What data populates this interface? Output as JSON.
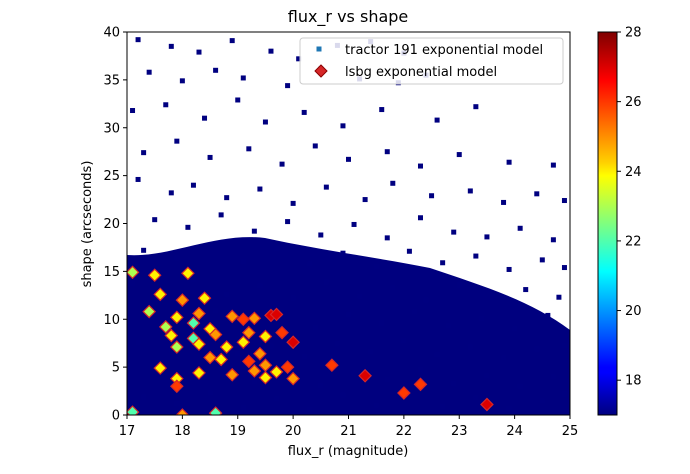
{
  "chart_data": {
    "type": "scatter",
    "title": "flux_r vs shape",
    "xlabel": "flux_r (magnitude)",
    "ylabel": "shape (arcseconds)",
    "xlim": [
      17,
      25
    ],
    "ylim": [
      0,
      40
    ],
    "xticks": [
      17,
      18,
      19,
      20,
      21,
      22,
      23,
      24,
      25
    ],
    "yticks": [
      0,
      5,
      10,
      15,
      20,
      25,
      30,
      35,
      40
    ],
    "grid": false,
    "legend_position": "upper right",
    "colorbar": {
      "colormap": "jet",
      "vmin": 17,
      "vmax": 28,
      "ticks": [
        18,
        20,
        22,
        24,
        26,
        28
      ]
    },
    "series": [
      {
        "name": "tractor 191 exponential model",
        "marker": "square",
        "legend_color": "#1f77b4",
        "dominant_color_value": 17,
        "points": [
          [
            17.2,
            39.2
          ],
          [
            17.8,
            38.5
          ],
          [
            18.3,
            37.9
          ],
          [
            18.9,
            39.1
          ],
          [
            19.6,
            38.0
          ],
          [
            20.1,
            37.2
          ],
          [
            20.8,
            38.6
          ],
          [
            21.4,
            39.0
          ],
          [
            22.0,
            37.8
          ],
          [
            17.4,
            35.8
          ],
          [
            18.0,
            34.9
          ],
          [
            18.6,
            36.0
          ],
          [
            19.1,
            35.2
          ],
          [
            19.9,
            34.4
          ],
          [
            20.5,
            36.2
          ],
          [
            21.2,
            35.1
          ],
          [
            21.9,
            34.7
          ],
          [
            22.4,
            35.5
          ],
          [
            17.1,
            31.8
          ],
          [
            17.7,
            32.4
          ],
          [
            18.4,
            31.0
          ],
          [
            19.0,
            32.9
          ],
          [
            19.5,
            30.6
          ],
          [
            20.2,
            31.6
          ],
          [
            20.9,
            30.2
          ],
          [
            21.6,
            31.9
          ],
          [
            22.6,
            30.8
          ],
          [
            23.3,
            32.2
          ],
          [
            17.3,
            27.4
          ],
          [
            17.9,
            28.6
          ],
          [
            18.5,
            26.9
          ],
          [
            19.2,
            27.8
          ],
          [
            19.8,
            26.2
          ],
          [
            20.4,
            28.1
          ],
          [
            21.0,
            26.7
          ],
          [
            21.7,
            27.5
          ],
          [
            22.3,
            26.0
          ],
          [
            23.0,
            27.2
          ],
          [
            23.9,
            26.4
          ],
          [
            24.7,
            26.1
          ],
          [
            17.2,
            24.6
          ],
          [
            17.8,
            23.2
          ],
          [
            18.2,
            24.0
          ],
          [
            18.8,
            22.7
          ],
          [
            19.4,
            23.6
          ],
          [
            20.0,
            22.1
          ],
          [
            20.6,
            23.8
          ],
          [
            21.3,
            22.5
          ],
          [
            21.8,
            24.2
          ],
          [
            22.5,
            22.9
          ],
          [
            23.2,
            23.4
          ],
          [
            23.8,
            22.2
          ],
          [
            24.4,
            23.1
          ],
          [
            24.9,
            22.4
          ],
          [
            17.5,
            20.4
          ],
          [
            18.1,
            19.6
          ],
          [
            18.7,
            20.9
          ],
          [
            19.3,
            19.2
          ],
          [
            19.9,
            20.2
          ],
          [
            20.5,
            18.8
          ],
          [
            21.1,
            19.9
          ],
          [
            21.7,
            18.5
          ],
          [
            22.3,
            20.6
          ],
          [
            22.9,
            19.1
          ],
          [
            23.5,
            18.6
          ],
          [
            24.1,
            19.5
          ],
          [
            24.7,
            18.3
          ],
          [
            17.3,
            17.2
          ],
          [
            17.9,
            16.4
          ],
          [
            18.5,
            17.7
          ],
          [
            19.1,
            16.0
          ],
          [
            19.7,
            17.4
          ],
          [
            20.3,
            15.8
          ],
          [
            20.9,
            16.9
          ],
          [
            21.5,
            15.5
          ],
          [
            22.1,
            17.1
          ],
          [
            22.7,
            15.9
          ],
          [
            23.3,
            16.6
          ],
          [
            23.9,
            15.2
          ],
          [
            24.5,
            16.2
          ],
          [
            24.9,
            15.4
          ],
          [
            17.1,
            13.8
          ],
          [
            17.6,
            12.9
          ],
          [
            18.2,
            14.1
          ],
          [
            18.8,
            12.6
          ],
          [
            19.4,
            13.5
          ],
          [
            20.0,
            12.2
          ],
          [
            20.6,
            13.9
          ],
          [
            21.2,
            12.4
          ],
          [
            21.8,
            13.3
          ],
          [
            22.4,
            12.0
          ],
          [
            23.0,
            13.6
          ],
          [
            23.6,
            12.7
          ],
          [
            24.2,
            13.1
          ],
          [
            24.8,
            12.3
          ],
          [
            17.4,
            10.6
          ],
          [
            18.0,
            9.8
          ],
          [
            18.6,
            10.9
          ],
          [
            19.2,
            9.4
          ],
          [
            19.8,
            10.2
          ],
          [
            20.4,
            9.1
          ],
          [
            21.0,
            10.5
          ],
          [
            21.6,
            9.6
          ],
          [
            22.2,
            10.8
          ],
          [
            22.8,
            9.3
          ],
          [
            23.4,
            10.1
          ],
          [
            24.0,
            9.0
          ],
          [
            24.6,
            10.4
          ],
          [
            17.2,
            7.6
          ],
          [
            17.8,
            6.8
          ],
          [
            18.4,
            7.9
          ],
          [
            19.0,
            6.4
          ],
          [
            19.6,
            7.2
          ],
          [
            20.2,
            6.1
          ],
          [
            20.8,
            7.5
          ],
          [
            21.4,
            6.6
          ],
          [
            22.0,
            7.8
          ],
          [
            22.6,
            6.3
          ],
          [
            23.2,
            7.1
          ],
          [
            23.8,
            6.0
          ],
          [
            24.4,
            6.9
          ],
          [
            24.9,
            7.3
          ],
          [
            17.5,
            4.6
          ],
          [
            18.1,
            3.8
          ],
          [
            18.7,
            4.9
          ],
          [
            19.3,
            3.5
          ],
          [
            19.9,
            4.3
          ],
          [
            20.5,
            3.1
          ],
          [
            21.1,
            4.4
          ],
          [
            21.7,
            3.7
          ],
          [
            22.3,
            4.8
          ],
          [
            22.9,
            3.3
          ],
          [
            23.5,
            4.1
          ],
          [
            24.1,
            3.0
          ],
          [
            24.7,
            4.0
          ],
          [
            17.3,
            1.9
          ],
          [
            17.9,
            1.2
          ],
          [
            18.5,
            2.3
          ],
          [
            19.1,
            0.8
          ],
          [
            19.7,
            1.7
          ],
          [
            20.3,
            0.6
          ],
          [
            20.9,
            2.1
          ],
          [
            21.5,
            1.0
          ],
          [
            22.1,
            2.4
          ],
          [
            22.7,
            0.9
          ],
          [
            23.3,
            1.8
          ],
          [
            23.9,
            0.7
          ],
          [
            24.5,
            1.5
          ],
          [
            24.9,
            2.2
          ]
        ]
      },
      {
        "name": "lsbg exponential model",
        "marker": "diamond",
        "legend_color": "#d62728",
        "points": [
          [
            17.1,
            14.9,
            23
          ],
          [
            17.5,
            14.6,
            24
          ],
          [
            18.1,
            14.8,
            24
          ],
          [
            17.6,
            12.6,
            24
          ],
          [
            18.0,
            12.0,
            25
          ],
          [
            18.4,
            12.2,
            24
          ],
          [
            17.4,
            10.8,
            23
          ],
          [
            17.9,
            10.2,
            24
          ],
          [
            18.3,
            10.6,
            25
          ],
          [
            18.9,
            10.3,
            25
          ],
          [
            19.1,
            10.0,
            26
          ],
          [
            19.3,
            10.1,
            25
          ],
          [
            19.6,
            10.4,
            27
          ],
          [
            19.7,
            10.5,
            27
          ],
          [
            17.7,
            9.2,
            23
          ],
          [
            18.2,
            9.6,
            22
          ],
          [
            18.5,
            9.0,
            24
          ],
          [
            17.8,
            8.3,
            24
          ],
          [
            18.2,
            8.0,
            22
          ],
          [
            18.6,
            8.4,
            25
          ],
          [
            19.2,
            8.6,
            25
          ],
          [
            19.5,
            8.2,
            24
          ],
          [
            19.8,
            8.6,
            26
          ],
          [
            20.0,
            7.6,
            27
          ],
          [
            17.9,
            7.1,
            23
          ],
          [
            18.3,
            7.4,
            24
          ],
          [
            18.8,
            7.1,
            24
          ],
          [
            19.1,
            7.6,
            24
          ],
          [
            19.4,
            6.4,
            25
          ],
          [
            18.5,
            6.0,
            25
          ],
          [
            18.7,
            5.8,
            24
          ],
          [
            19.2,
            5.6,
            26
          ],
          [
            19.5,
            5.2,
            25
          ],
          [
            19.7,
            4.5,
            24
          ],
          [
            19.9,
            5.0,
            26
          ],
          [
            17.6,
            4.9,
            24
          ],
          [
            17.9,
            3.8,
            24
          ],
          [
            18.3,
            4.4,
            24
          ],
          [
            18.9,
            4.2,
            25
          ],
          [
            19.3,
            4.6,
            25
          ],
          [
            19.5,
            3.9,
            24
          ],
          [
            20.0,
            3.8,
            25
          ],
          [
            17.9,
            3.0,
            26
          ],
          [
            20.7,
            5.2,
            26
          ],
          [
            21.3,
            4.1,
            27
          ],
          [
            22.0,
            2.3,
            26
          ],
          [
            22.3,
            3.2,
            26
          ],
          [
            23.5,
            1.1,
            27
          ],
          [
            17.1,
            0.3,
            22
          ],
          [
            18.0,
            0.0,
            25
          ],
          [
            18.6,
            0.2,
            22
          ]
        ]
      }
    ]
  }
}
